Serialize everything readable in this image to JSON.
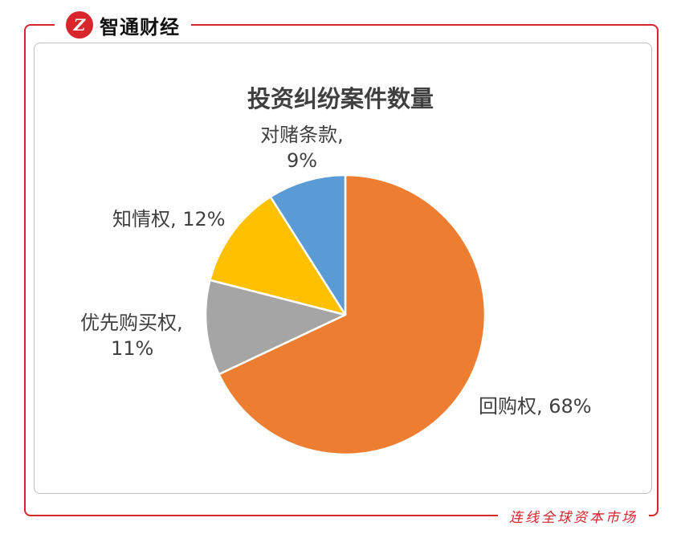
{
  "brand": {
    "logo_letter": "Z",
    "name": "智通财经"
  },
  "slogan": "连线全球资本市场",
  "chart_data": {
    "type": "pie",
    "title": "投资纠纷案件数量",
    "slices": [
      {
        "name": "回购权",
        "value": 68,
        "color": "#ed7d31",
        "label_line1": "回购权, 68%",
        "label_line2": ""
      },
      {
        "name": "优先购买权",
        "value": 11,
        "color": "#a5a5a5",
        "label_line1": "优先购买权,",
        "label_line2": "11%"
      },
      {
        "name": "知情权",
        "value": 12,
        "color": "#ffc000",
        "label_line1": "知情权, 12%",
        "label_line2": ""
      },
      {
        "name": "对赌条款",
        "value": 9,
        "color": "#5b9bd5",
        "label_line1": "对赌条款,",
        "label_line2": "9%"
      }
    ]
  }
}
